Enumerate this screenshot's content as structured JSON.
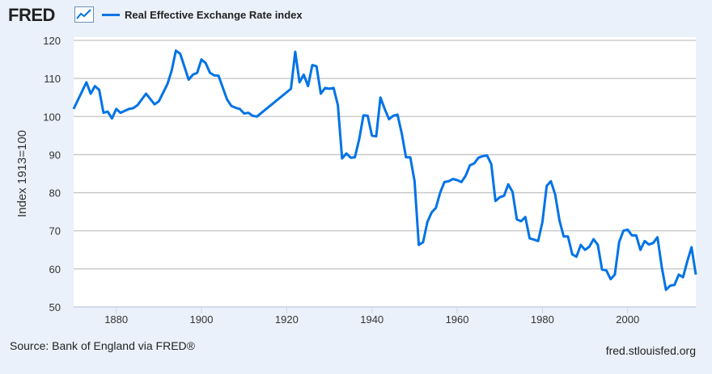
{
  "header": {
    "logo": "FRED",
    "logo_icon": "chart-line-icon"
  },
  "legend": {
    "label": "Real Effective Exchange Rate index",
    "color": "#0073e6"
  },
  "footer": {
    "source": "Source: Bank of England via FRED®",
    "site": "fred.stlouisfed.org"
  },
  "chart_data": {
    "type": "line",
    "title": "",
    "ylabel": "Index 1913=100",
    "xlabel": "",
    "xlim": [
      1870,
      2016
    ],
    "ylim": [
      50,
      120
    ],
    "yticks": [
      50,
      60,
      70,
      80,
      90,
      100,
      110,
      120
    ],
    "xticks": [
      1880,
      1900,
      1920,
      1940,
      1960,
      1980,
      2000
    ],
    "grid": "horizontal",
    "legend_placement": "top",
    "series": [
      {
        "name": "Real Effective Exchange Rate index",
        "color": "#0073e6",
        "x": [
          1870,
          1873,
          1874,
          1875,
          1876,
          1877,
          1878,
          1879,
          1880,
          1881,
          1883,
          1884,
          1885,
          1887,
          1889,
          1890,
          1892,
          1893,
          1894,
          1895,
          1897,
          1898,
          1899,
          1900,
          1901,
          1902,
          1903,
          1904,
          1906,
          1907,
          1908,
          1909,
          1910,
          1911,
          1912,
          1913,
          1921,
          1922,
          1923,
          1924,
          1925,
          1926,
          1927,
          1928,
          1929,
          1930,
          1931,
          1932,
          1933,
          1934,
          1935,
          1936,
          1937,
          1938,
          1939,
          1940,
          1941,
          1942,
          1943,
          1944,
          1945,
          1946,
          1947,
          1948,
          1949,
          1950,
          1951,
          1952,
          1953,
          1954,
          1955,
          1956,
          1957,
          1958,
          1959,
          1960,
          1961,
          1962,
          1963,
          1964,
          1965,
          1966,
          1967,
          1968,
          1969,
          1970,
          1971,
          1972,
          1973,
          1974,
          1975,
          1976,
          1977,
          1978,
          1979,
          1980,
          1981,
          1982,
          1983,
          1984,
          1985,
          1986,
          1987,
          1988,
          1989,
          1990,
          1991,
          1992,
          1993,
          1994,
          1995,
          1996,
          1997,
          1998,
          1999,
          2000,
          2001,
          2002,
          2003,
          2004,
          2005,
          2006,
          2007,
          2008,
          2009,
          2010,
          2011,
          2012,
          2013,
          2014,
          2015,
          2016
        ],
        "y": [
          102,
          109,
          106,
          108,
          107,
          101,
          101.3,
          99.5,
          102,
          101,
          102,
          102.2,
          103,
          106,
          103.2,
          104,
          108.5,
          112,
          117.3,
          116.5,
          109.7,
          111,
          111.5,
          115,
          114,
          111.5,
          110.8,
          110.7,
          104.5,
          102.8,
          102.3,
          102,
          100.8,
          101,
          100.2,
          100,
          107.3,
          117,
          109,
          111,
          108,
          113.5,
          113.2,
          106,
          107.5,
          107.3,
          107.5,
          103,
          89,
          90.3,
          89.2,
          89.3,
          94,
          100.3,
          100.2,
          95,
          94.8,
          105,
          102,
          99.3,
          100.2,
          100.5,
          95.5,
          89.3,
          89.3,
          83,
          66.3,
          67,
          72.3,
          74.8,
          76,
          80,
          82.8,
          83,
          83.6,
          83.3,
          82.8,
          84.5,
          87.2,
          87.7,
          89.2,
          89.6,
          89.8,
          87.5,
          77.8,
          78.8,
          79.2,
          82.2,
          80.2,
          73,
          72.5,
          73.6,
          68,
          67.7,
          67.3,
          72.3,
          81.8,
          83,
          79.5,
          72.7,
          68.5,
          68.5,
          63.8,
          63.2,
          66.3,
          65,
          65.8,
          67.8,
          66.3,
          59.8,
          59.6,
          57.3,
          58.5,
          67,
          70,
          70.3,
          68.8,
          68.8,
          65,
          67.3,
          66.4,
          66.8,
          68.3,
          60.5,
          54.5,
          55.6,
          55.8,
          58.5,
          57.8,
          62,
          65.7,
          58.5
        ]
      }
    ]
  }
}
